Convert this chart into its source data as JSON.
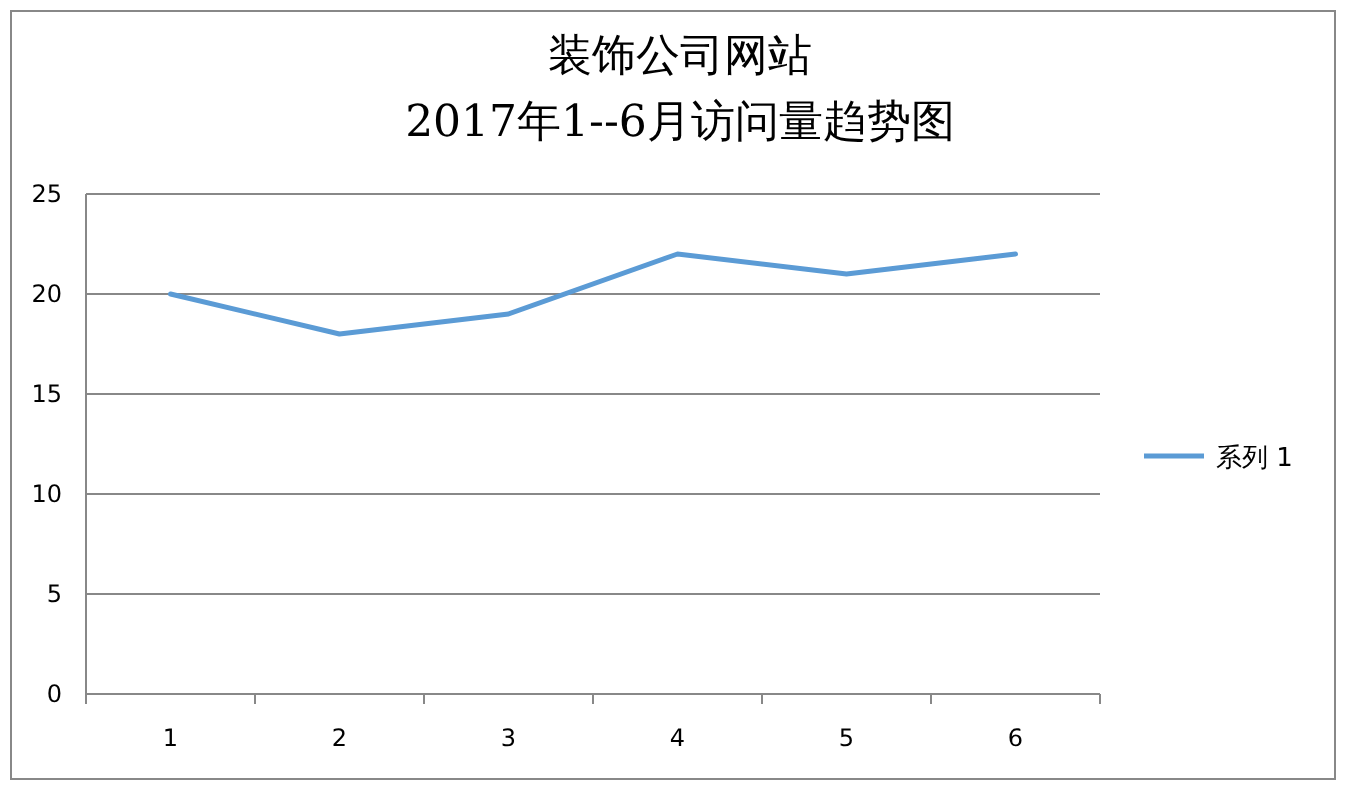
{
  "chart_data": {
    "type": "line",
    "title": "装饰公司网站",
    "subtitle": "2017年1--6月访问量趋势图",
    "categories": [
      "1",
      "2",
      "3",
      "4",
      "5",
      "6"
    ],
    "series": [
      {
        "name": "系列 1",
        "color": "#5b9bd5",
        "values": [
          20,
          18,
          19,
          22,
          21,
          22
        ]
      }
    ],
    "ylim": [
      0,
      25
    ],
    "yticks": [
      0,
      5,
      10,
      15,
      20,
      25
    ],
    "grid": "y",
    "legend": "right"
  }
}
